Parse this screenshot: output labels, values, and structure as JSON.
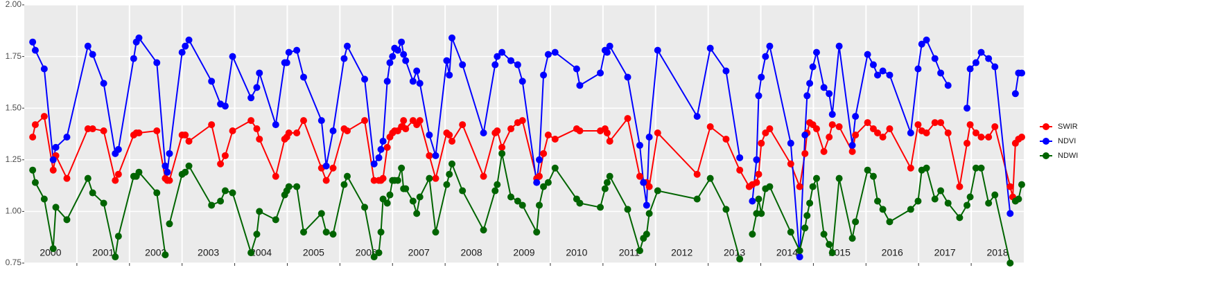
{
  "chart_data": {
    "type": "line",
    "x": [
      2000.16,
      2000.21,
      2000.38,
      2000.55,
      2000.6,
      2000.81,
      2001.21,
      2001.3,
      2001.51,
      2001.73,
      2001.79,
      2002.08,
      2002.13,
      2002.18,
      2002.52,
      2002.68,
      2002.72,
      2002.76,
      2003.0,
      2003.06,
      2003.13,
      2003.56,
      2003.73,
      2003.82,
      2003.96,
      2004.31,
      2004.42,
      2004.47,
      2004.78,
      2004.95,
      2004.99,
      2005.03,
      2005.18,
      2005.31,
      2005.65,
      2005.74,
      2005.87,
      2006.08,
      2006.14,
      2006.47,
      2006.65,
      2006.74,
      2006.78,
      2006.82,
      2006.9,
      2006.95,
      2007.0,
      2007.04,
      2007.1,
      2007.17,
      2007.21,
      2007.25,
      2007.39,
      2007.46,
      2007.52,
      2007.7,
      2007.82,
      2008.03,
      2008.08,
      2008.13,
      2008.33,
      2008.73,
      2008.95,
      2008.99,
      2009.08,
      2009.25,
      2009.38,
      2009.47,
      2009.74,
      2009.79,
      2009.87,
      2009.96,
      2010.09,
      2010.5,
      2010.56,
      2010.95,
      2011.04,
      2011.08,
      2011.13,
      2011.47,
      2011.7,
      2011.77,
      2011.83,
      2011.88,
      2012.04,
      2012.79,
      2013.04,
      2013.34,
      2013.6,
      2013.78,
      2013.84,
      2013.92,
      2013.96,
      2014.01,
      2014.09,
      2014.17,
      2014.57,
      2014.74,
      2014.84,
      2014.88,
      2014.93,
      2014.99,
      2015.06,
      2015.2,
      2015.3,
      2015.36,
      2015.49,
      2015.74,
      2015.8,
      2016.03,
      2016.14,
      2016.22,
      2016.32,
      2016.45,
      2016.85,
      2016.99,
      2017.06,
      2017.15,
      2017.31,
      2017.42,
      2017.56,
      2017.78,
      2017.92,
      2017.98,
      2018.09,
      2018.19,
      2018.33,
      2018.45,
      2018.74,
      2018.79,
      2018.84,
      2018.9,
      2018.96
    ],
    "series": [
      {
        "name": "SWIR",
        "color": "#ff0000",
        "values": [
          1.36,
          1.42,
          1.46,
          1.2,
          1.27,
          1.16,
          1.4,
          1.4,
          1.39,
          1.15,
          1.18,
          1.37,
          1.38,
          1.38,
          1.39,
          1.16,
          1.15,
          1.15,
          1.37,
          1.37,
          1.34,
          1.42,
          1.23,
          1.27,
          1.39,
          1.44,
          1.4,
          1.35,
          1.17,
          1.35,
          1.36,
          1.38,
          1.38,
          1.44,
          1.21,
          1.15,
          1.21,
          1.4,
          1.39,
          1.44,
          1.15,
          1.15,
          1.15,
          1.16,
          1.31,
          1.36,
          1.38,
          1.39,
          1.39,
          1.41,
          1.44,
          1.4,
          1.44,
          1.42,
          1.44,
          1.27,
          1.16,
          1.38,
          1.37,
          1.34,
          1.42,
          1.17,
          1.38,
          1.39,
          1.31,
          1.4,
          1.43,
          1.44,
          1.16,
          1.17,
          1.28,
          1.37,
          1.35,
          1.4,
          1.39,
          1.39,
          1.4,
          1.38,
          1.34,
          1.45,
          1.17,
          1.14,
          1.14,
          1.12,
          1.38,
          1.18,
          1.41,
          1.35,
          1.2,
          1.12,
          1.13,
          1.14,
          1.18,
          1.33,
          1.38,
          1.4,
          1.23,
          1.12,
          1.28,
          1.38,
          1.43,
          1.42,
          1.4,
          1.29,
          1.36,
          1.42,
          1.41,
          1.29,
          1.37,
          1.43,
          1.4,
          1.38,
          1.36,
          1.4,
          1.21,
          1.42,
          1.39,
          1.38,
          1.43,
          1.43,
          1.38,
          1.12,
          1.33,
          1.42,
          1.38,
          1.36,
          1.36,
          1.41,
          1.12,
          1.07,
          1.33,
          1.35,
          1.36
        ]
      },
      {
        "name": "NDVI",
        "color": "#0000ff",
        "values": [
          1.82,
          1.78,
          1.69,
          1.25,
          1.31,
          1.36,
          1.8,
          1.76,
          1.62,
          1.28,
          1.3,
          1.74,
          1.82,
          1.84,
          1.72,
          1.22,
          1.19,
          1.28,
          1.77,
          1.8,
          1.83,
          1.63,
          1.52,
          1.51,
          1.75,
          1.55,
          1.6,
          1.67,
          1.42,
          1.72,
          1.72,
          1.77,
          1.78,
          1.65,
          1.44,
          1.22,
          1.39,
          1.74,
          1.8,
          1.64,
          1.23,
          1.26,
          1.3,
          1.34,
          1.63,
          1.72,
          1.75,
          1.79,
          1.78,
          1.82,
          1.76,
          1.73,
          1.63,
          1.68,
          1.62,
          1.37,
          1.27,
          1.73,
          1.66,
          1.84,
          1.71,
          1.38,
          1.71,
          1.75,
          1.77,
          1.73,
          1.71,
          1.63,
          1.14,
          1.25,
          1.66,
          1.76,
          1.77,
          1.69,
          1.61,
          1.67,
          1.78,
          1.77,
          1.8,
          1.65,
          1.32,
          1.14,
          1.03,
          1.36,
          1.78,
          1.46,
          1.79,
          1.68,
          1.26,
          null,
          1.05,
          1.25,
          1.56,
          1.65,
          1.75,
          1.8,
          1.33,
          0.78,
          1.37,
          1.56,
          1.62,
          1.7,
          1.77,
          1.6,
          1.57,
          1.47,
          1.8,
          1.32,
          1.46,
          1.76,
          1.71,
          1.66,
          1.68,
          1.66,
          1.38,
          1.69,
          1.81,
          1.83,
          1.74,
          1.67,
          1.61,
          null,
          1.5,
          1.69,
          1.72,
          1.77,
          1.74,
          1.7,
          0.99,
          null,
          1.57,
          1.67,
          1.67
        ]
      },
      {
        "name": "NDWI",
        "color": "#006400",
        "values": [
          1.2,
          1.14,
          1.06,
          0.82,
          1.02,
          0.96,
          1.16,
          1.09,
          1.04,
          0.78,
          0.88,
          1.17,
          1.17,
          1.19,
          1.09,
          0.79,
          null,
          0.94,
          1.18,
          1.19,
          1.22,
          1.03,
          1.05,
          1.1,
          1.09,
          0.8,
          0.89,
          1.0,
          0.96,
          1.08,
          1.1,
          1.12,
          1.12,
          0.9,
          0.99,
          0.9,
          0.89,
          1.13,
          1.17,
          1.02,
          0.78,
          0.8,
          0.9,
          1.06,
          1.04,
          1.08,
          1.15,
          1.15,
          1.15,
          1.21,
          1.11,
          1.11,
          1.05,
          0.99,
          1.07,
          1.16,
          0.9,
          1.13,
          1.18,
          1.23,
          1.1,
          0.91,
          1.1,
          1.13,
          1.28,
          1.07,
          1.05,
          1.03,
          0.9,
          1.03,
          1.12,
          1.14,
          1.21,
          1.06,
          1.04,
          1.02,
          1.11,
          1.14,
          1.17,
          1.01,
          0.81,
          0.87,
          0.89,
          0.99,
          1.1,
          1.06,
          1.16,
          1.01,
          0.77,
          null,
          0.89,
          0.99,
          1.06,
          0.99,
          1.11,
          1.12,
          0.9,
          0.81,
          0.92,
          0.98,
          1.04,
          1.12,
          1.16,
          0.89,
          0.84,
          0.8,
          1.16,
          0.87,
          0.95,
          1.2,
          1.17,
          1.05,
          1.01,
          0.95,
          1.01,
          1.05,
          1.2,
          1.21,
          1.06,
          1.1,
          1.04,
          0.97,
          1.03,
          1.07,
          1.21,
          1.21,
          1.04,
          1.08,
          0.75,
          null,
          1.05,
          1.06,
          1.13
        ]
      }
    ],
    "xlim": [
      2000,
      2019
    ],
    "xticks": [
      {
        "value": 2000.5,
        "label": "2000"
      },
      {
        "value": 2001.5,
        "label": "2001"
      },
      {
        "value": 2002.5,
        "label": "2002"
      },
      {
        "value": 2003.5,
        "label": "2003"
      },
      {
        "value": 2004.5,
        "label": "2004"
      },
      {
        "value": 2005.5,
        "label": "2005"
      },
      {
        "value": 2006.5,
        "label": "2006"
      },
      {
        "value": 2007.5,
        "label": "2007"
      },
      {
        "value": 2008.5,
        "label": "2008"
      },
      {
        "value": 2009.5,
        "label": "2009"
      },
      {
        "value": 2010.5,
        "label": "2010"
      },
      {
        "value": 2011.5,
        "label": "2011"
      },
      {
        "value": 2012.5,
        "label": "2012"
      },
      {
        "value": 2013.5,
        "label": "2013"
      },
      {
        "value": 2014.5,
        "label": "2014"
      },
      {
        "value": 2015.5,
        "label": "2015"
      },
      {
        "value": 2016.5,
        "label": "2016"
      },
      {
        "value": 2017.5,
        "label": "2017"
      },
      {
        "value": 2018.5,
        "label": "2018"
      }
    ],
    "xgrid": [
      2001,
      2002,
      2003,
      2004,
      2005,
      2006,
      2007,
      2008,
      2009,
      2010,
      2011,
      2012,
      2013,
      2014,
      2015,
      2016,
      2017,
      2018
    ],
    "ylim": [
      0.75,
      2.0
    ],
    "yticks": [
      {
        "value": 0.75,
        "label": "0.75"
      },
      {
        "value": 1.0,
        "label": "1.00"
      },
      {
        "value": 1.25,
        "label": "1.25"
      },
      {
        "value": 1.5,
        "label": "1.50"
      },
      {
        "value": 1.75,
        "label": "1.75"
      },
      {
        "value": 2.0,
        "label": "2.00"
      }
    ],
    "grid": true,
    "legend": "right"
  }
}
